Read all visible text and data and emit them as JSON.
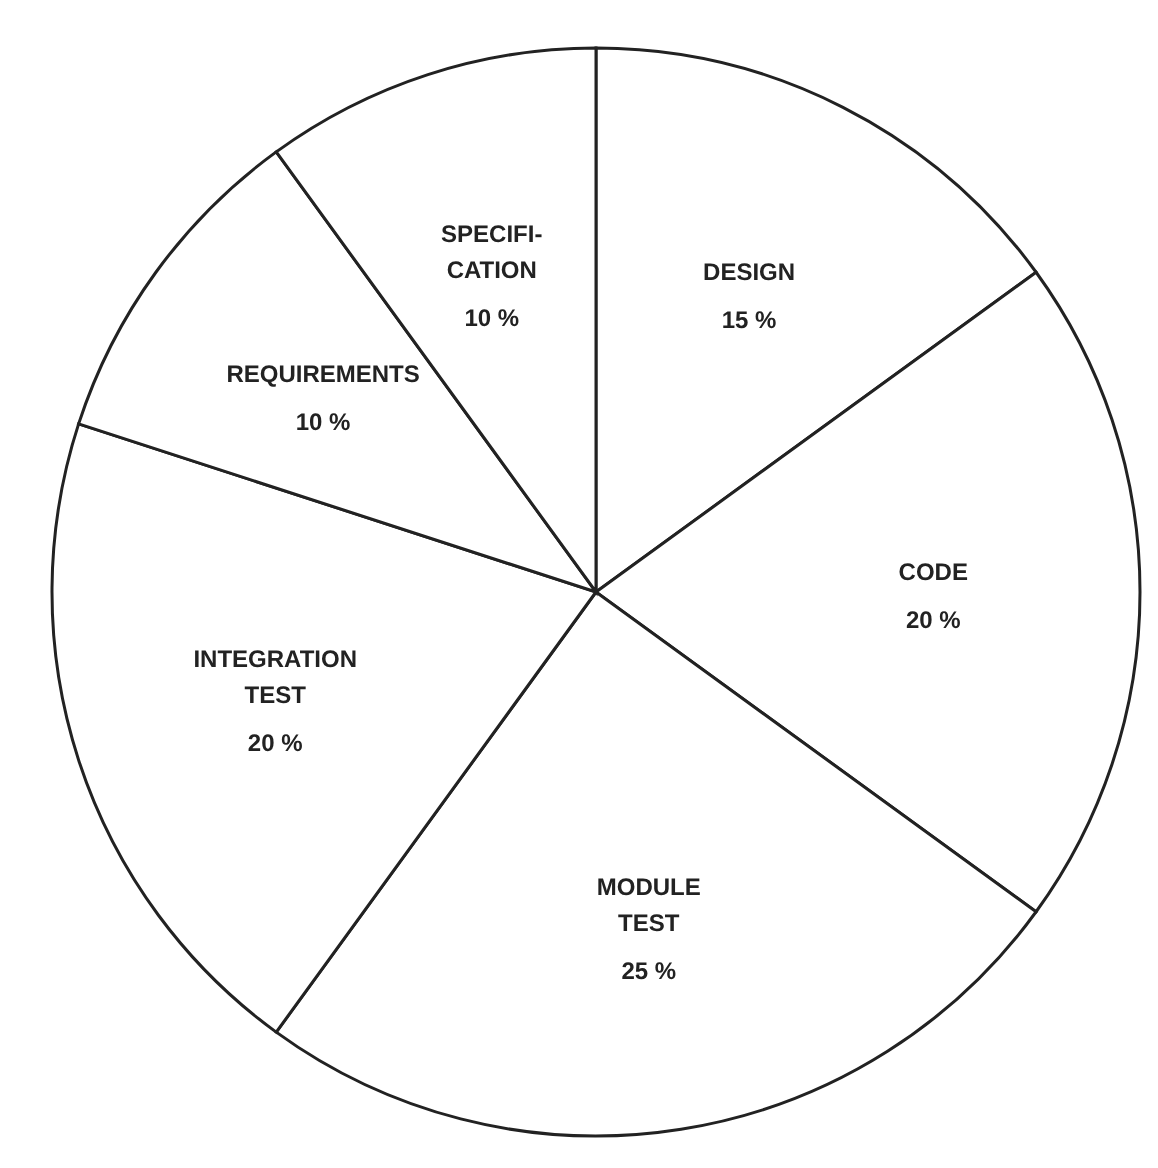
{
  "chart_data": {
    "type": "pie",
    "categories": [
      "DESIGN",
      "CODE",
      "MODULE\nTEST",
      "INTEGRATION\nTEST",
      "REQUIREMENTS",
      "SPECIFI-\nCATION"
    ],
    "values": [
      15,
      20,
      25,
      20,
      10,
      10
    ],
    "value_labels": [
      "15 %",
      "20 %",
      "25 %",
      "20 %",
      "10 %",
      "10 %"
    ],
    "colors": [
      "#ffffff",
      "#ffffff",
      "#ffffff",
      "#ffffff",
      "#ffffff",
      "#ffffff"
    ],
    "legend": false
  }
}
